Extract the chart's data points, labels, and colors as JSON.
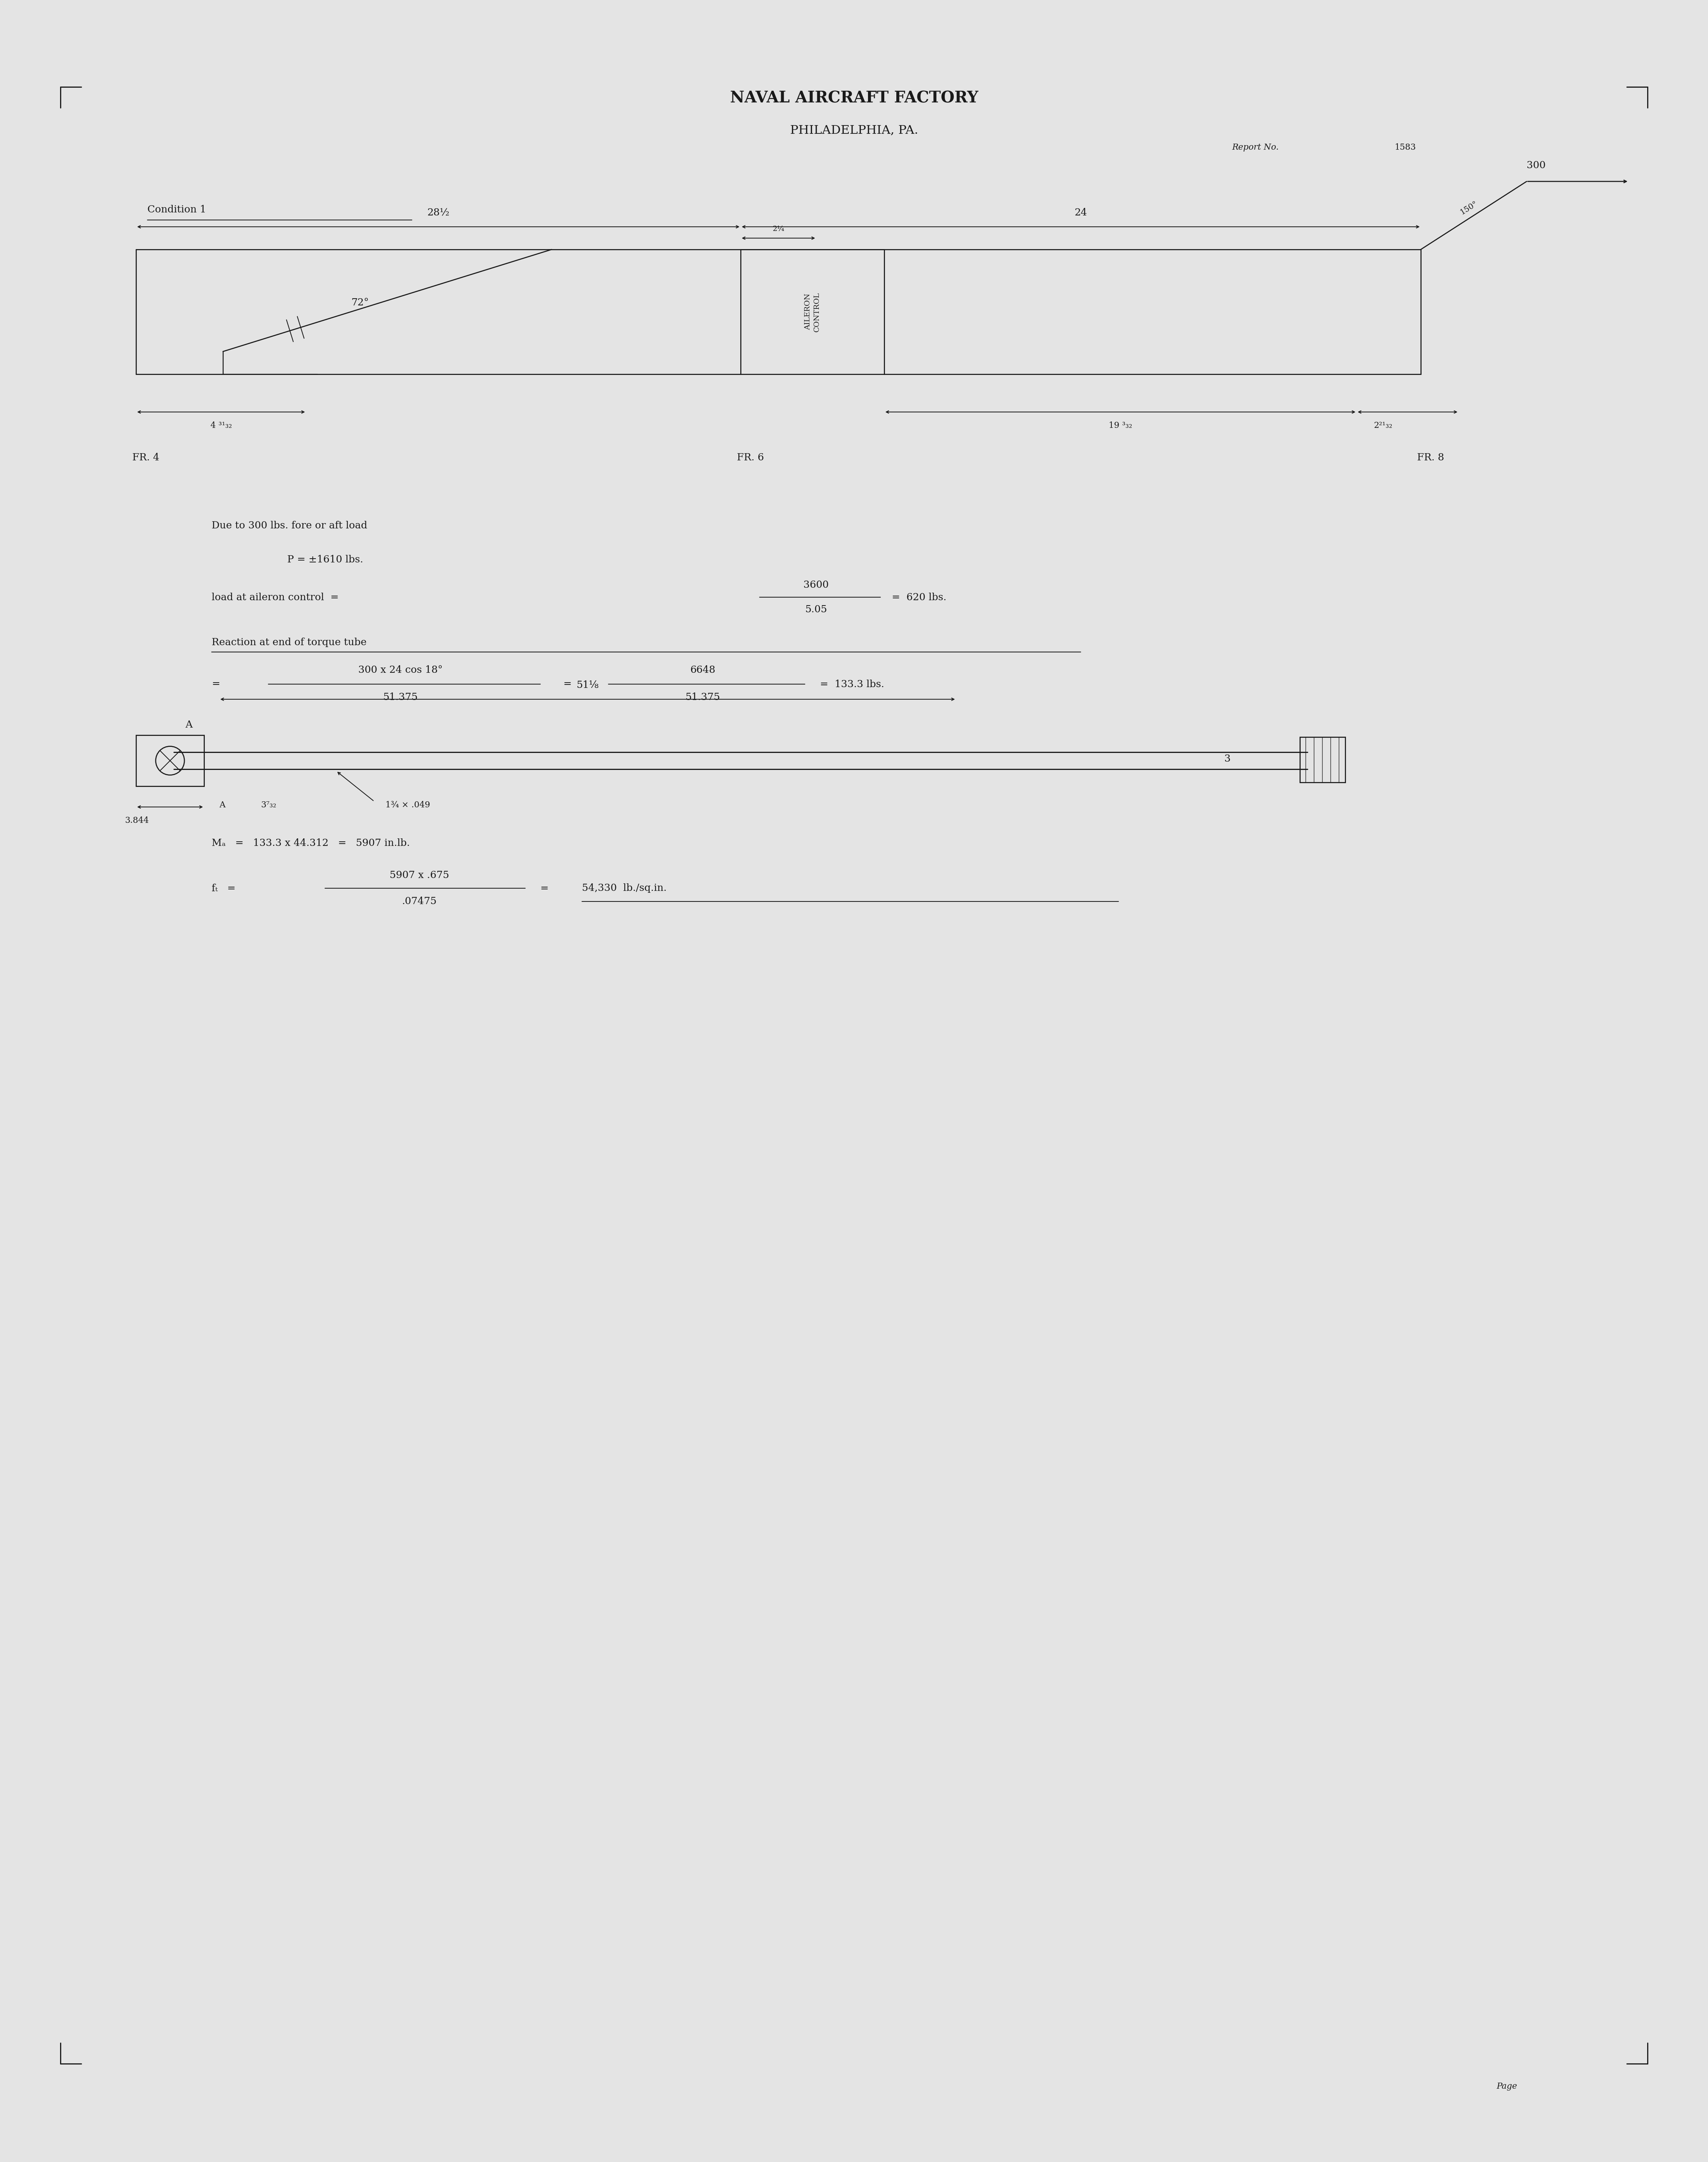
{
  "bg_color": "#e4e4e4",
  "header_title": "NAVAL AIRCRAFT FACTORY",
  "header_subtitle": "PHILADELPHIA, PA.",
  "report_label": "Report No.",
  "report_number": "1583",
  "page_label": "Page",
  "condition_label": "Condition 1",
  "fr4_label": "FR. 4",
  "fr6_label": "FR. 6",
  "fr8_label": "FR. 8",
  "dim_28half": "28½",
  "dim_24": "24",
  "dim_72": "72°",
  "dim_2_1_4": "2¼",
  "dim_19_3_32": "19 ³₃₂",
  "dim_2_21_32": "2²¹₃₂",
  "dim_4_31_32": "4 ³¹₃₂",
  "dim_aileron_control": "AILERON\nCONTROL",
  "dim_150": "150°",
  "dim_300": "300",
  "dim_51_8": "51⅛",
  "dim_3_7_32": "3⁷₃₂",
  "dim_1_3_4": "1¾ × .049",
  "dim_3_844": "3.844",
  "text1_line1": "Due to 300 lbs. fore or aft load",
  "text1_line2": "P = ±1610 lbs.",
  "section_title": "Reaction at end of torque tube",
  "ma_eq": "Mₐ   =   133.3 x 44.312   =   5907 in.lb.",
  "ft_result": "54,330  lb./sq.in."
}
